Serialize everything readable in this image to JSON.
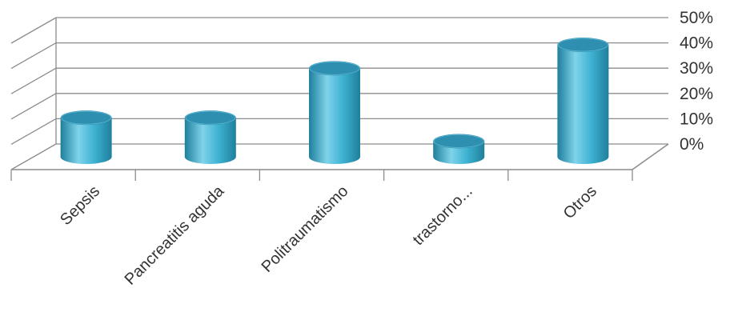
{
  "chart_data": {
    "type": "bar",
    "style": "3d-cylinder",
    "categories": [
      "Sepsis",
      "Pancreatitis aguda",
      "Politraumatismo",
      "trastorno...",
      "Otros"
    ],
    "values": [
      15,
      15,
      34,
      6,
      43
    ],
    "value_unit": "%",
    "yticks": [
      "0%",
      "10%",
      "20%",
      "30%",
      "40%",
      "50%"
    ],
    "ylim": [
      0,
      50
    ],
    "y_axis_position": "right",
    "grid": true,
    "legend": "none",
    "colors": {
      "bar_body": "#3fb3d3",
      "bar_highlight": "#7fd3ea",
      "bar_shadow": "#1f7f9c",
      "bar_top": "#2e8fb0",
      "grid": "#8c8c8c",
      "text": "#333333"
    }
  }
}
